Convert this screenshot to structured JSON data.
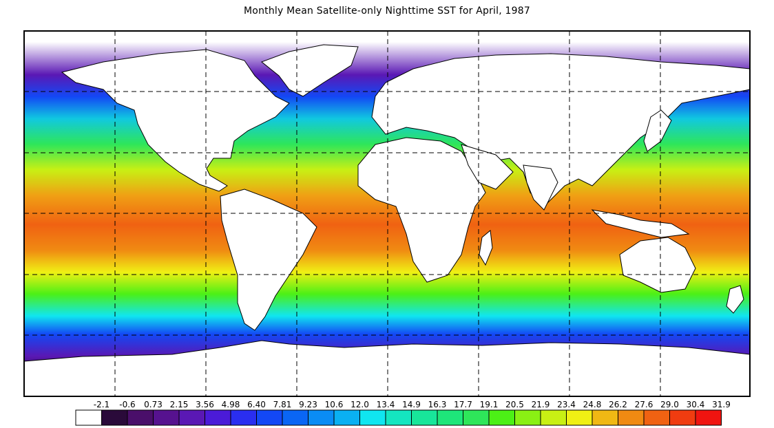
{
  "title": "Monthly Mean Satellite-only Nighttime SST for April, 1987",
  "map": {
    "projection": "equirectangular",
    "grid": "dashed"
  },
  "legend": {
    "labels": [
      "-2.1",
      "-0.6",
      "0.73",
      "2.15",
      "3.56",
      "4.98",
      "6.40",
      "7.81",
      "9.23",
      "10.6",
      "12.0",
      "13.4",
      "14.9",
      "16.3",
      "17.7",
      "19.1",
      "20.5",
      "21.9",
      "23.4",
      "24.8",
      "26.2",
      "27.6",
      "29.0",
      "30.4",
      "31.9"
    ],
    "colors": [
      "#ffffff",
      "#2a0a3a",
      "#4a0f6a",
      "#56128f",
      "#5a18b4",
      "#4b1bd8",
      "#2a2ef0",
      "#1348f5",
      "#0a66f4",
      "#0a8cf4",
      "#0ab0f2",
      "#10e6f0",
      "#14e6c0",
      "#18e69a",
      "#1ee67a",
      "#2ee65a",
      "#4cf016",
      "#8af014",
      "#c8f014",
      "#f0f014",
      "#f0b814",
      "#f08a12",
      "#f06212",
      "#f03c10",
      "#f01410"
    ]
  }
}
